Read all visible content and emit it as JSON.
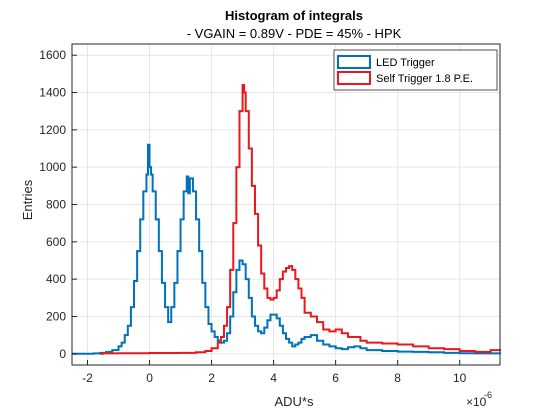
{
  "chart_data": {
    "type": "line",
    "style": "stairs",
    "title": "Histogram of integrals",
    "subtitle": "- VGAIN = 0.89V - PDE = 45% - HPK",
    "xlabel": "ADU*s",
    "ylabel": "Entries",
    "x_exponent_label": "×10",
    "x_exponent": "-6",
    "xlim": [
      -2.5,
      11.3
    ],
    "ylim": [
      -60,
      1660
    ],
    "xticks": [
      -2,
      0,
      2,
      4,
      6,
      8,
      10
    ],
    "yticks": [
      0,
      200,
      400,
      600,
      800,
      1000,
      1200,
      1400,
      1600
    ],
    "grid": true,
    "legend_position": "top-right",
    "colors": {
      "led": "#0072BD",
      "self": "#E8181C",
      "grid": "#e6e6e6",
      "axis": "#262626"
    },
    "series": [
      {
        "name": "LED Trigger",
        "color": "#0072BD",
        "x": [
          -2.5,
          -2.0,
          -1.8,
          -1.6,
          -1.4,
          -1.2,
          -1.0,
          -0.9,
          -0.8,
          -0.7,
          -0.6,
          -0.5,
          -0.4,
          -0.3,
          -0.2,
          -0.1,
          -0.05,
          0.0,
          0.05,
          0.1,
          0.2,
          0.3,
          0.4,
          0.5,
          0.6,
          0.7,
          0.8,
          0.9,
          1.0,
          1.1,
          1.2,
          1.25,
          1.3,
          1.4,
          1.5,
          1.6,
          1.7,
          1.8,
          1.9,
          2.0,
          2.1,
          2.2,
          2.3,
          2.4,
          2.5,
          2.6,
          2.7,
          2.8,
          2.9,
          3.0,
          3.1,
          3.2,
          3.3,
          3.4,
          3.5,
          3.6,
          3.7,
          3.8,
          3.9,
          4.0,
          4.1,
          4.2,
          4.3,
          4.4,
          4.5,
          4.6,
          4.7,
          4.8,
          4.9,
          5.0,
          5.2,
          5.4,
          5.6,
          5.8,
          6.0,
          6.2,
          6.4,
          6.6,
          6.8,
          7.0,
          7.5,
          8.0,
          8.5,
          9.0,
          9.5,
          10.0,
          10.5,
          11.3
        ],
        "y": [
          0,
          0,
          2,
          5,
          10,
          20,
          40,
          60,
          100,
          150,
          250,
          390,
          550,
          720,
          870,
          960,
          1120,
          1000,
          960,
          870,
          720,
          550,
          380,
          250,
          170,
          250,
          380,
          550,
          720,
          870,
          950,
          860,
          940,
          870,
          720,
          550,
          380,
          250,
          160,
          120,
          90,
          70,
          60,
          70,
          110,
          200,
          330,
          450,
          500,
          480,
          400,
          300,
          200,
          150,
          120,
          110,
          140,
          180,
          210,
          210,
          190,
          150,
          110,
          80,
          60,
          40,
          50,
          60,
          80,
          90,
          100,
          70,
          50,
          40,
          30,
          25,
          35,
          40,
          30,
          20,
          15,
          12,
          10,
          8,
          5,
          3,
          2,
          0
        ]
      },
      {
        "name": "Self Trigger 1.8 P.E.",
        "color": "#E8181C",
        "x": [
          -1.6,
          -1.5,
          -1.0,
          0.0,
          1.0,
          1.5,
          1.8,
          2.0,
          2.2,
          2.3,
          2.4,
          2.5,
          2.6,
          2.7,
          2.8,
          2.9,
          3.0,
          3.05,
          3.1,
          3.2,
          3.3,
          3.4,
          3.5,
          3.6,
          3.7,
          3.8,
          3.9,
          4.0,
          4.1,
          4.2,
          4.3,
          4.4,
          4.5,
          4.6,
          4.7,
          4.8,
          4.9,
          5.0,
          5.2,
          5.4,
          5.6,
          5.8,
          6.0,
          6.2,
          6.4,
          6.6,
          6.8,
          7.0,
          7.5,
          8.0,
          8.5,
          9.0,
          9.5,
          10.0,
          10.5,
          11.0,
          11.3
        ],
        "y": [
          0,
          2,
          3,
          4,
          5,
          8,
          15,
          30,
          60,
          90,
          150,
          250,
          450,
          700,
          1000,
          1300,
          1440,
          1400,
          1300,
          1100,
          900,
          750,
          580,
          430,
          350,
          300,
          290,
          300,
          340,
          400,
          440,
          460,
          470,
          450,
          400,
          350,
          300,
          220,
          200,
          170,
          130,
          120,
          130,
          110,
          90,
          90,
          70,
          60,
          55,
          50,
          40,
          30,
          25,
          15,
          10,
          20,
          25
        ]
      }
    ]
  }
}
